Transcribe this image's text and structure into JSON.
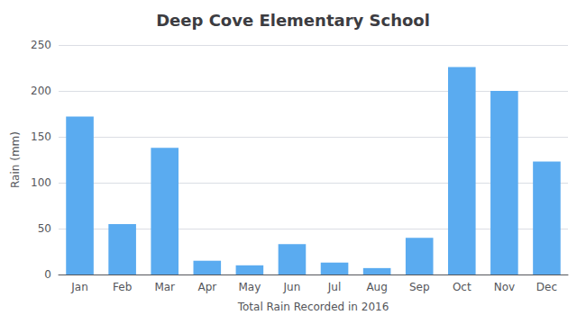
{
  "chart_data": {
    "type": "bar",
    "title": "Deep Cove Elementary School",
    "xlabel": "Total Rain Recorded in 2016",
    "ylabel": "Rain (mm)",
    "categories": [
      "Jan",
      "Feb",
      "Mar",
      "Apr",
      "May",
      "Jun",
      "Jul",
      "Aug",
      "Sep",
      "Oct",
      "Nov",
      "Dec"
    ],
    "values": [
      172,
      55,
      138,
      15,
      10,
      33,
      13,
      7,
      40,
      226,
      200,
      123
    ],
    "color": "#5aabf0",
    "ylim": [
      0,
      250
    ],
    "yticks": [
      0,
      50,
      100,
      150,
      200,
      250
    ],
    "grid": true
  }
}
